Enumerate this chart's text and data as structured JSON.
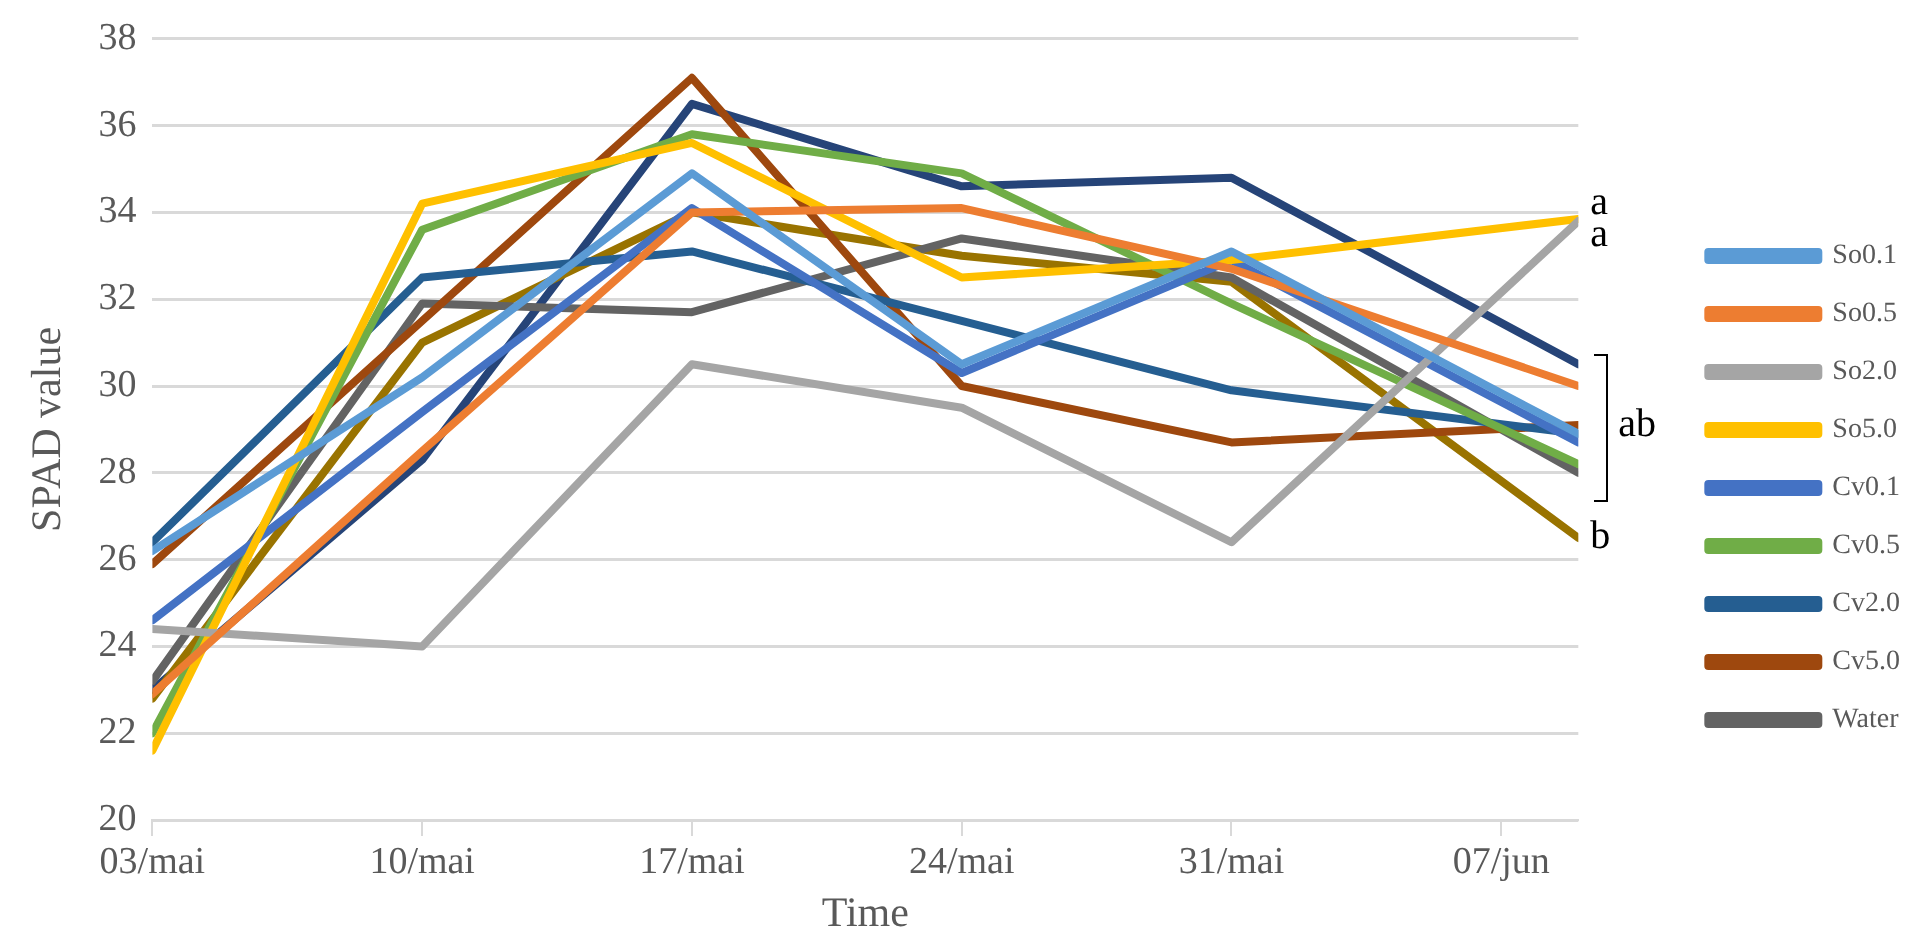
{
  "chart_data": {
    "type": "line",
    "xlabel": "Time",
    "ylabel": "SPAD value",
    "x": [
      "--05-03",
      "--05-10",
      "--05-17",
      "--05-24",
      "--05-31",
      "--06-09"
    ],
    "xlim": [
      "--05-03",
      "--06-09"
    ],
    "xticks": [
      {
        "value": "--05-03",
        "label": "03/mai"
      },
      {
        "value": "--05-10",
        "label": "10/mai"
      },
      {
        "value": "--05-17",
        "label": "17/mai"
      },
      {
        "value": "--05-24",
        "label": "24/mai"
      },
      {
        "value": "--05-31",
        "label": "31/mai"
      },
      {
        "value": "--06-07",
        "label": "07/jun"
      }
    ],
    "ylim": [
      20,
      38
    ],
    "yticks": [
      20,
      22,
      24,
      26,
      28,
      30,
      32,
      34,
      36,
      38
    ],
    "grid": "y",
    "legend": "right",
    "marker": "none",
    "line_style": "solid",
    "series": [
      {
        "name": "So0.1",
        "color": "#5b9bd5",
        "values": [
          26.2,
          30.2,
          34.9,
          30.5,
          33.1,
          28.9
        ]
      },
      {
        "name": "So0.5",
        "color": "#ed7d31",
        "values": [
          22.9,
          28.5,
          34.0,
          34.1,
          32.7,
          30.0
        ]
      },
      {
        "name": "So2.0",
        "color": "#a5a5a5",
        "values": [
          24.4,
          24.0,
          30.5,
          29.5,
          26.4,
          33.8
        ]
      },
      {
        "name": "So5.0",
        "color": "#ffc000",
        "values": [
          21.6,
          34.2,
          35.6,
          32.5,
          32.9,
          33.85
        ]
      },
      {
        "name": "Cv0.1",
        "color": "#4472c4",
        "values": [
          24.6,
          29.4,
          34.1,
          30.3,
          32.9,
          28.7
        ]
      },
      {
        "name": "Cv0.5",
        "color": "#70ad47",
        "values": [
          22.0,
          33.6,
          35.8,
          34.9,
          31.9,
          28.2
        ]
      },
      {
        "name": "Cv2.0",
        "color": "#255e91",
        "values": [
          26.4,
          32.5,
          33.1,
          31.5,
          29.9,
          28.9
        ]
      },
      {
        "name": "Cv5.0",
        "color": "#9e480e",
        "values": [
          25.9,
          31.5,
          37.1,
          30.0,
          28.7,
          29.1
        ]
      },
      {
        "name": "Water",
        "color": "#636363",
        "values": [
          23.2,
          31.9,
          31.7,
          33.4,
          32.5,
          28.0
        ]
      },
      {
        "color": "#997300",
        "values": [
          22.8,
          31.0,
          34.0,
          33.0,
          32.4,
          26.5
        ]
      },
      {
        "color": "#264478",
        "values": [
          23.0,
          28.3,
          36.5,
          34.6,
          34.8,
          30.5
        ]
      }
    ],
    "annotations": [
      {
        "text": "a",
        "x": "--06-09",
        "y": 33.85
      },
      {
        "text": "a",
        "x": "--06-09",
        "y": 33.8
      },
      {
        "text": "ab",
        "x": "--06-09",
        "y": 29.1
      },
      {
        "text": "b",
        "x": "--06-09",
        "y": 26.5
      }
    ]
  }
}
